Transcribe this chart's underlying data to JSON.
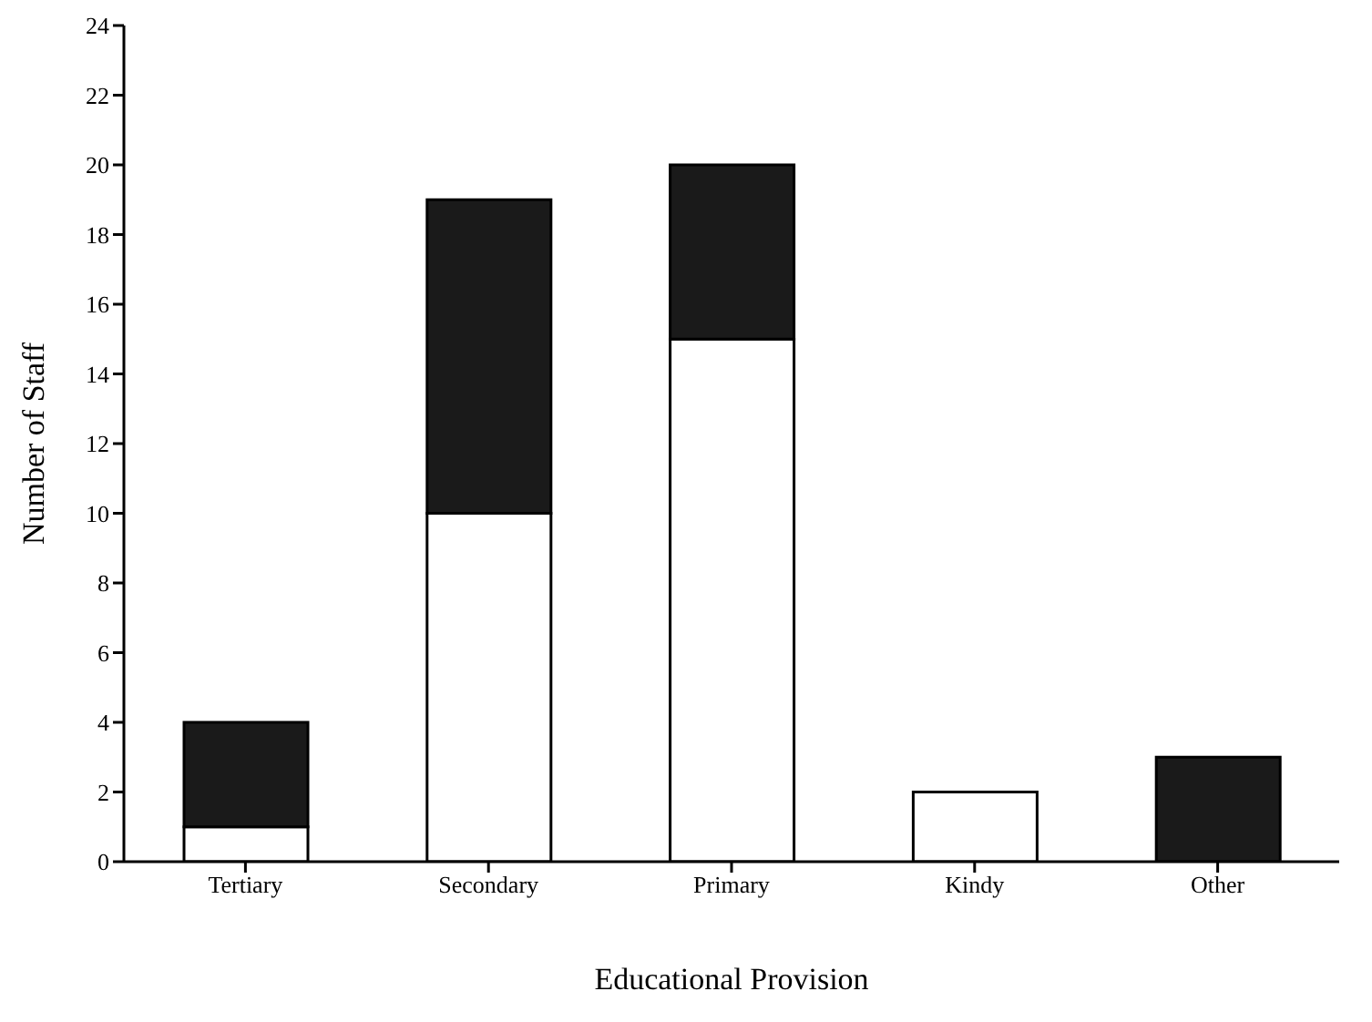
{
  "chart_data": {
    "type": "bar",
    "xlabel": "Educational Provision",
    "ylabel": "Number of Staff",
    "categories": [
      "Tertiary",
      "Secondary",
      "Primary",
      "Kindy",
      "Other"
    ],
    "stacked": true,
    "series": [
      {
        "color": "#ffffff",
        "values": [
          1,
          10,
          15,
          2,
          0
        ]
      },
      {
        "color": "#1a1a1a",
        "values": [
          3,
          9,
          5,
          0,
          3
        ]
      }
    ],
    "ylim": [
      0,
      24
    ],
    "yticks": [
      0,
      2,
      4,
      6,
      8,
      10,
      12,
      14,
      16,
      18,
      20,
      22,
      24
    ],
    "grid": false,
    "legend": false
  }
}
